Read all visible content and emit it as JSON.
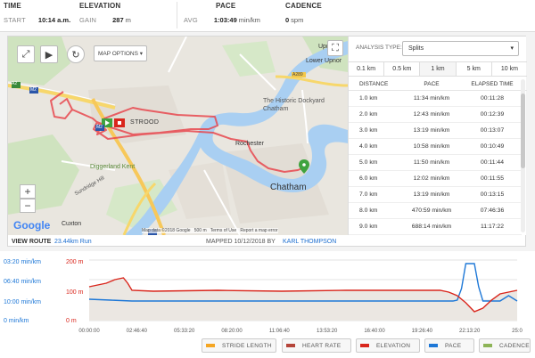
{
  "stats": {
    "time": {
      "heading": "TIME",
      "label": "START",
      "value": "10:14 a.m."
    },
    "elevation": {
      "heading": "ELEVATION",
      "label": "GAIN",
      "value": "287",
      "unit": "m"
    },
    "pace": {
      "heading": "PACE",
      "label": "AVG",
      "value": "1:03:49",
      "unit": "min/km"
    },
    "cadence": {
      "heading": "CADENCE",
      "value": "0",
      "unit": "spm"
    }
  },
  "map": {
    "options_label": "MAP OPTIONS",
    "labels": {
      "upnor": "Upnor",
      "lower_upnor": "Lower Upnor",
      "dockyard": "The Historic Dockyard Chatham",
      "strood": "STROOD",
      "rochester": "Rochester",
      "diggerland": "Diggerland Kent",
      "chatham": "Chatham",
      "cuxton": "Cuxton",
      "sundridge": "Sundridge Hill",
      "a2": "A2",
      "m2a": "M2",
      "m2b": "M2",
      "a289": "A289"
    },
    "google": "Google",
    "footer": {
      "data": "Map data ©2018 Google",
      "scale": "500 m",
      "terms": "Terms of Use",
      "report": "Report a map error"
    }
  },
  "splits": {
    "analysis_label": "ANALYSIS TYPE:",
    "selected": "Splits",
    "tabs": [
      "0.1 km",
      "0.5 km",
      "1 km",
      "5 km",
      "10 km"
    ],
    "active_tab": "1 km",
    "columns": [
      "DISTANCE",
      "PACE",
      "ELAPSED TIME"
    ],
    "rows": [
      [
        "1.0 km",
        "11:34 min/km",
        "00:11:28"
      ],
      [
        "2.0 km",
        "12:43 min/km",
        "00:12:39"
      ],
      [
        "3.0 km",
        "13:19 min/km",
        "00:13:07"
      ],
      [
        "4.0 km",
        "10:58 min/km",
        "00:10:49"
      ],
      [
        "5.0 km",
        "11:50 min/km",
        "00:11:44"
      ],
      [
        "6.0 km",
        "12:02 min/km",
        "00:11:55"
      ],
      [
        "7.0 km",
        "13:19 min/km",
        "00:13:15"
      ],
      [
        "8.0 km",
        "470:59 min/km",
        "07:46:36"
      ],
      [
        "9.0 km",
        "688:14 min/km",
        "11:17:22"
      ]
    ]
  },
  "route": {
    "label": "VIEW ROUTE",
    "link": "23.44km Run",
    "mapped": "MAPPED 10/12/2018 BY",
    "author": "KARL THOMPSON"
  },
  "chart_data": {
    "type": "line",
    "x": [
      "00:00:00",
      "02:46:40",
      "05:33:20",
      "08:20:00",
      "11:06:40",
      "13:53:20",
      "16:40:00",
      "19:26:40",
      "22:13:20",
      "25:0"
    ],
    "pace_axis_labels": [
      "03:20 min/km",
      "06:40 min/km",
      "10:00 min/km",
      "0 min/km"
    ],
    "elevation_axis_labels": [
      "200 m",
      "100 m",
      "0 m"
    ],
    "series": [
      {
        "name": "ELEVATION",
        "color": "#d9261c"
      },
      {
        "name": "PACE",
        "color": "#1e78d7"
      }
    ]
  },
  "legend": [
    "STRIDE LENGTH",
    "HEART RATE",
    "ELEVATION",
    "PACE",
    "CADENCE"
  ],
  "legend_colors": {
    "STRIDE LENGTH": "#f5a623",
    "HEART RATE": "#b5453a",
    "ELEVATION": "#d9261c",
    "PACE": "#1e78d7",
    "CADENCE": "#8db457"
  }
}
